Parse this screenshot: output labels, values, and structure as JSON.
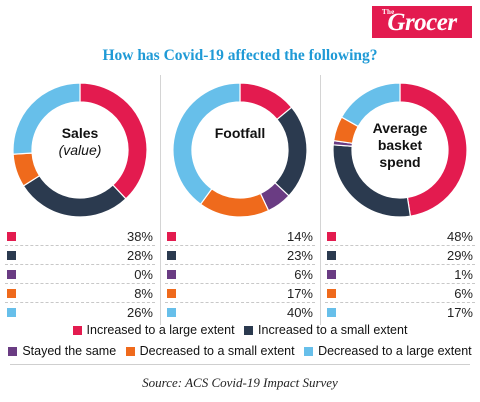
{
  "logo": {
    "small": "The",
    "main": "Grocer"
  },
  "colors": {
    "increased_large": "#e31b4f",
    "increased_small": "#2b3a4f",
    "stayed_same": "#6a3c83",
    "decreased_small": "#ef6a1c",
    "decreased_large": "#67bfea"
  },
  "chart_data": {
    "type": "pie",
    "title": "How has Covid-19 affected the following?",
    "legend": [
      "Increased to a large extent",
      "Increased to a small extent",
      "Stayed the same",
      "Decreased to a small extent",
      "Decreased to a large extent"
    ],
    "charts": [
      {
        "label": "Sales",
        "sublabel": "(value)",
        "values": [
          38,
          28,
          0,
          8,
          26
        ],
        "value_labels": [
          "38%",
          "28%",
          "0%",
          "8%",
          "26%"
        ]
      },
      {
        "label": "Footfall",
        "sublabel": "",
        "values": [
          14,
          23,
          6,
          17,
          40
        ],
        "value_labels": [
          "14%",
          "23%",
          "6%",
          "17%",
          "40%"
        ]
      },
      {
        "label": "Average basket spend",
        "label_lines": [
          "Average",
          "basket",
          "spend"
        ],
        "sublabel": "",
        "values": [
          48,
          29,
          1,
          6,
          17
        ],
        "value_labels": [
          "48%",
          "29%",
          "1%",
          "6%",
          "17%"
        ]
      }
    ]
  },
  "source": "Source: ACS Covid-19 Impact Survey"
}
